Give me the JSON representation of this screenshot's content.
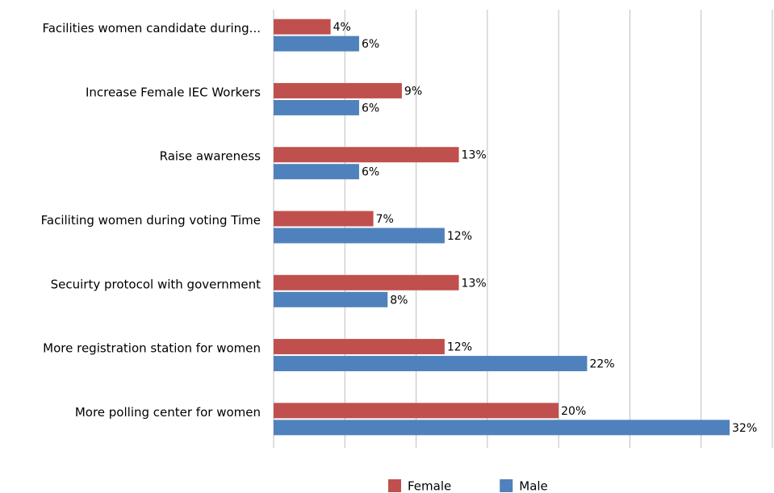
{
  "chart_data": {
    "type": "bar",
    "orientation": "horizontal",
    "categories": [
      "Facilities women candidate during...",
      "Increase Female IEC Workers",
      "Raise awareness",
      "Faciliting women during voting Time",
      "Secuirty protocol with government",
      "More registration station for women",
      "More polling center for women"
    ],
    "series": [
      {
        "name": "Female",
        "color": "#c0504d",
        "values": [
          4,
          9,
          13,
          7,
          13,
          12,
          20
        ],
        "value_labels": [
          "4%",
          "9%",
          "13%",
          "7%",
          "13%",
          "12%",
          "20%"
        ]
      },
      {
        "name": "Male",
        "color": "#4f81bd",
        "values": [
          6,
          6,
          6,
          12,
          8,
          22,
          32
        ],
        "value_labels": [
          "6%",
          "6%",
          "6%",
          "12%",
          "8%",
          "22%",
          "32%"
        ]
      }
    ],
    "xlim": [
      0,
      35
    ],
    "xticks": [
      0,
      5,
      10,
      15,
      20,
      25,
      30,
      35
    ],
    "grid": true,
    "legend": "bottom"
  }
}
